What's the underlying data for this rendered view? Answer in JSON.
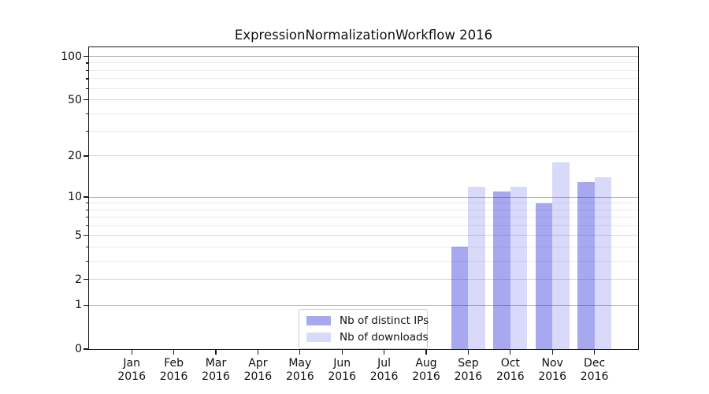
{
  "title": "ExpressionNormalizationWorkflow 2016",
  "chart_data": {
    "type": "bar",
    "title": "ExpressionNormalizationWorkflow 2016",
    "x_categories": [
      "Jan",
      "Feb",
      "Mar",
      "Apr",
      "May",
      "Jun",
      "Jul",
      "Aug",
      "Sep",
      "Oct",
      "Nov",
      "Dec"
    ],
    "x_year": "2016",
    "series": [
      {
        "name": "Nb of distinct IPs",
        "color": "rgba(13,13,214,0.36)",
        "color_hex": "#a9a9f0",
        "values": [
          0,
          0,
          0,
          0,
          0,
          0,
          0,
          0,
          4,
          11,
          9,
          13
        ]
      },
      {
        "name": "Nb of downloads",
        "color": "rgba(13,13,214,0.155)",
        "color_hex": "#dcdcf8",
        "values": [
          0,
          0,
          0,
          0,
          0,
          0,
          0,
          0,
          12,
          12,
          18,
          14
        ]
      }
    ],
    "y_scale": "log1p",
    "y_ticks_labeled": [
      0,
      1,
      2,
      5,
      10,
      20,
      50,
      100
    ],
    "y_ticks_minor": [
      3,
      4,
      6,
      7,
      8,
      9,
      30,
      40,
      60,
      70,
      80,
      90
    ],
    "ylim": [
      0,
      115
    ],
    "grid": "horizontal",
    "legend_position": "lower center",
    "grid_colors": {
      "major": "#b0b0b0",
      "labeled": "#d9d9d9",
      "minor": "#ececec"
    },
    "axis_color": "#1a1a1a"
  }
}
